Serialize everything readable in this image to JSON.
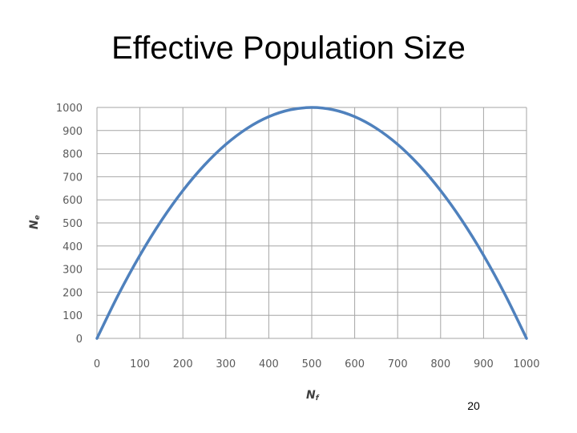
{
  "slide": {
    "title": "Effective Population Size",
    "page_number": "20"
  },
  "chart_data": {
    "type": "line",
    "title": "",
    "xlabel": {
      "main": "N",
      "sub": "f"
    },
    "ylabel": {
      "main": "N",
      "sub": "e"
    },
    "xlim": [
      0,
      1000
    ],
    "ylim": [
      0,
      1000
    ],
    "x_ticks": [
      "0",
      "100",
      "200",
      "300",
      "400",
      "500",
      "600",
      "700",
      "800",
      "900",
      "1000"
    ],
    "y_ticks": [
      "0",
      "100",
      "200",
      "300",
      "400",
      "500",
      "600",
      "700",
      "800",
      "900",
      "1000"
    ],
    "grid": true,
    "legend": "none",
    "series": [
      {
        "color": "#4f81bd",
        "x": [
          0,
          50,
          100,
          150,
          200,
          250,
          300,
          350,
          400,
          450,
          500,
          550,
          600,
          650,
          700,
          750,
          800,
          850,
          900,
          950,
          1000
        ],
        "y": [
          0,
          190,
          360,
          510,
          640,
          750,
          840,
          910,
          960,
          990,
          1000,
          990,
          960,
          910,
          840,
          750,
          640,
          510,
          360,
          190,
          0
        ]
      }
    ],
    "colors": {
      "line": "#4f81bd",
      "grid": "#a6a6a6",
      "tick_text": "#5a5a5a"
    }
  }
}
